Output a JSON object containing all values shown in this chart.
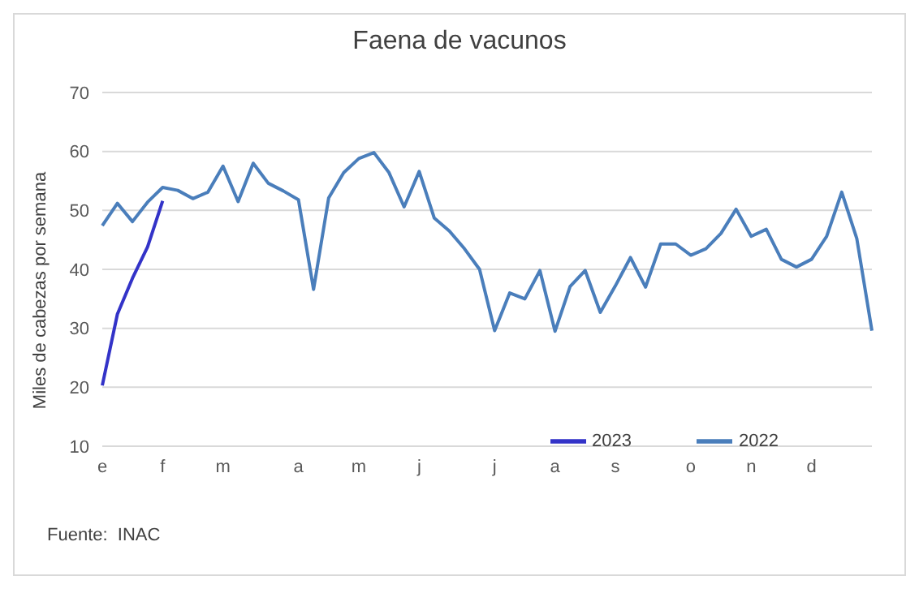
{
  "chart_data": {
    "type": "line",
    "title": "Faena de vacunos",
    "ylabel": "Miles de cabezas por semana",
    "categories": [
      "e",
      null,
      null,
      null,
      "f",
      null,
      null,
      null,
      "m",
      null,
      null,
      null,
      null,
      "a",
      null,
      null,
      null,
      "m",
      null,
      null,
      null,
      "j",
      null,
      null,
      null,
      null,
      "j",
      null,
      null,
      null,
      "a",
      null,
      null,
      null,
      "s",
      null,
      null,
      null,
      null,
      "o",
      null,
      null,
      null,
      "n",
      null,
      null,
      null,
      "d",
      null,
      null,
      null,
      null
    ],
    "series": [
      {
        "name": "2023",
        "color": "#3333c8",
        "values": [
          20.3,
          32.4,
          38.5,
          43.8,
          51.6,
          null,
          null,
          null,
          null,
          null,
          null,
          null,
          null,
          null,
          null,
          null,
          null,
          null,
          null,
          null,
          null,
          null,
          null,
          null,
          null,
          null,
          null,
          null,
          null,
          null,
          null,
          null,
          null,
          null,
          null,
          null,
          null,
          null,
          null,
          null,
          null,
          null,
          null,
          null,
          null,
          null,
          null,
          null,
          null,
          null,
          null,
          null
        ]
      },
      {
        "name": "2022",
        "color": "#4a7ebb",
        "values": [
          47.4,
          51.2,
          48.1,
          51.4,
          53.9,
          53.4,
          52.0,
          53.1,
          57.5,
          51.5,
          58.0,
          54.6,
          53.3,
          51.8,
          36.6,
          52.1,
          56.4,
          58.8,
          59.8,
          56.4,
          50.6,
          56.6,
          48.7,
          46.5,
          43.5,
          40.0,
          29.6,
          36.0,
          35.0,
          39.8,
          29.5,
          37.1,
          39.8,
          32.7,
          37.2,
          42.0,
          37.0,
          44.3,
          44.3,
          42.4,
          43.5,
          46.1,
          50.2,
          45.6,
          46.8,
          41.7,
          40.4,
          41.7,
          45.6,
          53.1,
          45.2,
          29.6
        ]
      }
    ],
    "ylim": [
      10,
      70
    ],
    "yticks": [
      10,
      20,
      30,
      40,
      50,
      60,
      70
    ],
    "grid": "y",
    "legend": "bottom right",
    "line_style": "solid",
    "marker": "none",
    "annotations": [
      "Fuente:  INAC"
    ]
  }
}
